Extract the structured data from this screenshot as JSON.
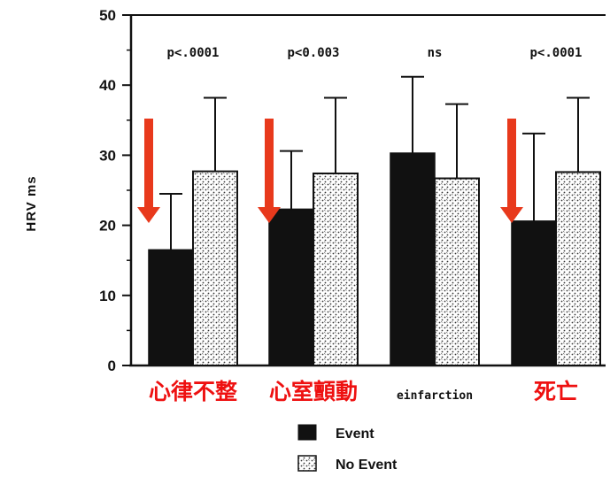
{
  "chart_data": {
    "type": "bar",
    "ylabel": "HRV ms",
    "ylim": [
      0,
      50
    ],
    "yticks": [
      "0",
      "10",
      "20",
      "30",
      "40",
      "50"
    ],
    "categories": [
      "心律不整",
      "心室顫動",
      "einfarction",
      "死亡"
    ],
    "category_colors": [
      "#ee1111",
      "#ee1111",
      "#111111",
      "#ee1111"
    ],
    "p_values": [
      "p<.0001",
      "p<0.003",
      "ns",
      "p<.0001"
    ],
    "series": [
      {
        "name": "Event",
        "values": [
          16.5,
          22.3,
          30.3,
          20.6
        ],
        "error": [
          24.5,
          30.6,
          41.2,
          33.1
        ],
        "fill": "#111111"
      },
      {
        "name": "No Event",
        "values": [
          27.7,
          27.4,
          26.7,
          27.6
        ],
        "error": [
          38.2,
          38.2,
          37.3,
          38.2
        ],
        "fill": "pattern"
      }
    ],
    "arrows": [
      true,
      true,
      false,
      true
    ],
    "arrow_color": "#e8391c",
    "legend_position": "bottom"
  }
}
